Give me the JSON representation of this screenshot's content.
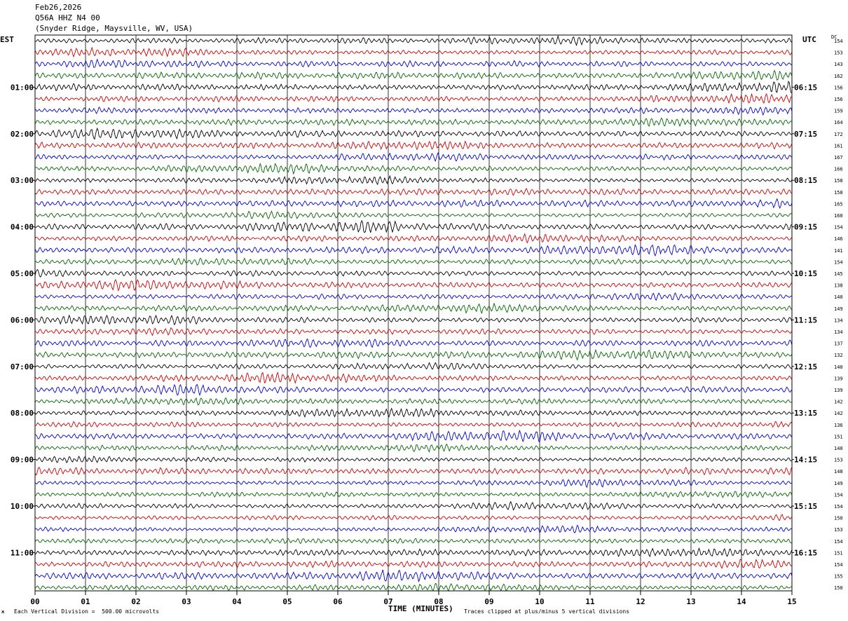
{
  "header": {
    "date": "Feb26,2026",
    "channel": "Q56A HHZ N4 00",
    "location": "(Snyder Ridge, Maysville, WV, USA)"
  },
  "labels": {
    "left_timezone": "EST",
    "right_timezone": "UTC",
    "dc_header": "DC"
  },
  "footer": {
    "scale_mark": "ж",
    "scale_note": "Each Vertical Division =  500.00 microvolts",
    "xlabel": "TIME (MINUTES)",
    "clip_note": "Traces clipped at plus/minus 5 vertical divisions"
  },
  "chart_data": {
    "type": "line",
    "subtype": "helicorder",
    "xlabel": "TIME (MINUTES)",
    "x_ticks": [
      "00",
      "01",
      "02",
      "03",
      "04",
      "05",
      "06",
      "07",
      "08",
      "09",
      "10",
      "11",
      "12",
      "13",
      "14",
      "15"
    ],
    "xlim": [
      0,
      15
    ],
    "trace_count": 48,
    "trace_color_cycle": [
      "#000000",
      "#cc0000",
      "#0000cc",
      "#006600"
    ],
    "left_time_labels": [
      "01:00",
      "02:00",
      "03:00",
      "04:00",
      "05:00",
      "06:00",
      "07:00",
      "08:00",
      "09:00",
      "10:00",
      "11:00"
    ],
    "right_time_labels": [
      "06:15",
      "07:15",
      "08:15",
      "09:15",
      "10:15",
      "11:15",
      "12:15",
      "13:15",
      "14:15",
      "15:15",
      "16:15"
    ],
    "hour_label_every_n_traces": 4,
    "first_hour_label_trace_index": 4,
    "dc_offsets": [
      "154",
      "153",
      "143",
      "162",
      "156",
      "156",
      "159",
      "164",
      "172",
      "161",
      "167",
      "166",
      "158",
      "158",
      "165",
      "160",
      "154",
      "146",
      "141",
      "154",
      "145",
      "138",
      "140",
      "149",
      "134",
      "134",
      "137",
      "132",
      "140",
      "139",
      "139",
      "142",
      "142",
      "136",
      "151",
      "140",
      "153",
      "148",
      "149",
      "154",
      "154",
      "150",
      "153",
      "154",
      "151",
      "154",
      "155",
      "150"
    ],
    "grid": true
  }
}
